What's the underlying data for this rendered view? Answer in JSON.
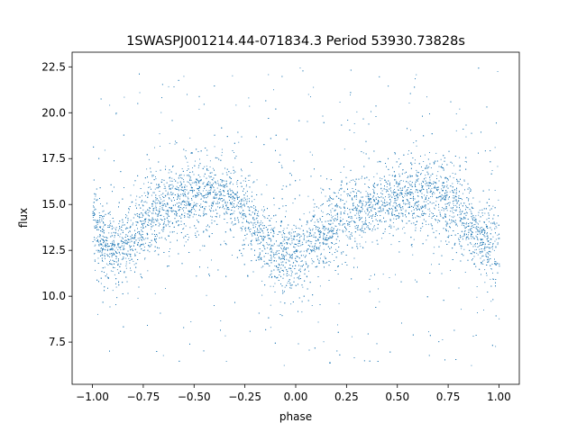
{
  "chart_data": {
    "type": "scatter",
    "title": "1SWASPJ001214.44-071834.3 Period 53930.73828s",
    "xlabel": "phase",
    "ylabel": "flux",
    "xlim": [
      -1.1,
      1.1
    ],
    "ylim": [
      5.2,
      23.3
    ],
    "xticks": [
      -1.0,
      -0.75,
      -0.5,
      -0.25,
      0.0,
      0.25,
      0.5,
      0.75,
      1.0
    ],
    "xtick_labels": [
      "−1.00",
      "−0.75",
      "−0.50",
      "−0.25",
      "0.00",
      "0.25",
      "0.50",
      "0.75",
      "1.00"
    ],
    "yticks": [
      7.5,
      10.0,
      12.5,
      15.0,
      17.5,
      20.0,
      22.5
    ],
    "ytick_labels": [
      "7.5",
      "10.0",
      "12.5",
      "15.0",
      "17.5",
      "20.0",
      "22.5"
    ],
    "grid": false,
    "marker_color": "#1f77b4",
    "series": [
      {
        "phase": [
          -1.0,
          -0.95,
          -0.9,
          -0.85,
          -0.8,
          -0.75,
          -0.7,
          -0.65,
          -0.6,
          -0.55,
          -0.5,
          -0.45,
          -0.4,
          -0.35,
          -0.3,
          -0.25,
          -0.2,
          -0.15,
          -0.1,
          -0.05,
          0.0,
          0.05,
          0.1,
          0.15,
          0.2,
          0.25,
          0.3,
          0.35,
          0.4,
          0.45,
          0.5,
          0.55,
          0.6,
          0.65,
          0.7,
          0.75,
          0.8,
          0.85,
          0.9,
          0.95,
          1.0
        ],
        "flux_mean": [
          13.8,
          13.0,
          12.6,
          12.8,
          13.4,
          14.0,
          14.5,
          14.9,
          15.1,
          15.3,
          15.4,
          15.5,
          15.6,
          15.5,
          15.2,
          14.6,
          13.8,
          13.0,
          12.5,
          12.3,
          12.3,
          12.6,
          13.1,
          13.6,
          14.0,
          14.5,
          14.8,
          15.0,
          15.2,
          15.3,
          15.3,
          15.4,
          15.5,
          15.6,
          15.5,
          15.2,
          14.6,
          13.8,
          13.1,
          12.7,
          12.6
        ]
      }
    ],
    "flux_scatter_range": [
      6.2,
      22.5
    ]
  }
}
